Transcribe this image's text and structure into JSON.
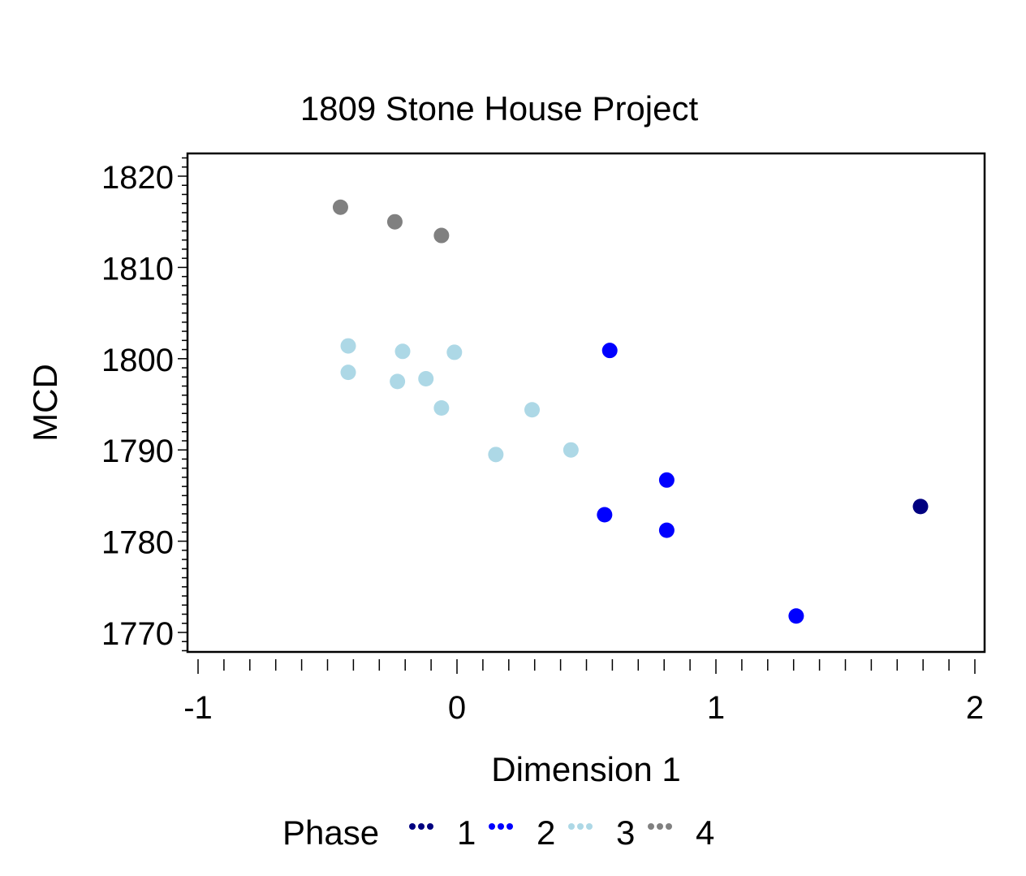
{
  "chart_data": {
    "type": "scatter",
    "title": "1809 Stone House Project",
    "xlabel": "Dimension 1",
    "ylabel": "MCD",
    "xlim": [
      -1.0,
      2.0
    ],
    "ylim": [
      1767,
      1822
    ],
    "x_ticks": [
      "-1",
      "0",
      "1",
      "2"
    ],
    "y_ticks": [
      "1770",
      "1780",
      "1790",
      "1800",
      "1810",
      "1820"
    ],
    "legend_title": "Phase",
    "legend_position": "bottom",
    "series": [
      {
        "name": "1",
        "color": "#000080",
        "points": [
          {
            "x": 1.79,
            "y": 1783.8
          }
        ]
      },
      {
        "name": "2",
        "color": "#0000ff",
        "points": [
          {
            "x": 0.59,
            "y": 1800.9
          },
          {
            "x": 0.81,
            "y": 1786.7
          },
          {
            "x": 0.57,
            "y": 1782.9
          },
          {
            "x": 0.81,
            "y": 1781.2
          },
          {
            "x": 1.31,
            "y": 1771.8
          }
        ]
      },
      {
        "name": "3",
        "color": "#add8e6",
        "points": [
          {
            "x": -0.42,
            "y": 1801.4
          },
          {
            "x": -0.42,
            "y": 1798.5
          },
          {
            "x": -0.21,
            "y": 1800.8
          },
          {
            "x": -0.01,
            "y": 1800.7
          },
          {
            "x": -0.23,
            "y": 1797.5
          },
          {
            "x": -0.12,
            "y": 1797.8
          },
          {
            "x": -0.06,
            "y": 1794.6
          },
          {
            "x": 0.29,
            "y": 1794.4
          },
          {
            "x": 0.15,
            "y": 1789.5
          },
          {
            "x": 0.44,
            "y": 1790.0
          }
        ]
      },
      {
        "name": "4",
        "color": "#808080",
        "points": [
          {
            "x": -0.45,
            "y": 1816.6
          },
          {
            "x": -0.24,
            "y": 1815.0
          },
          {
            "x": -0.06,
            "y": 1813.5
          }
        ]
      }
    ]
  }
}
